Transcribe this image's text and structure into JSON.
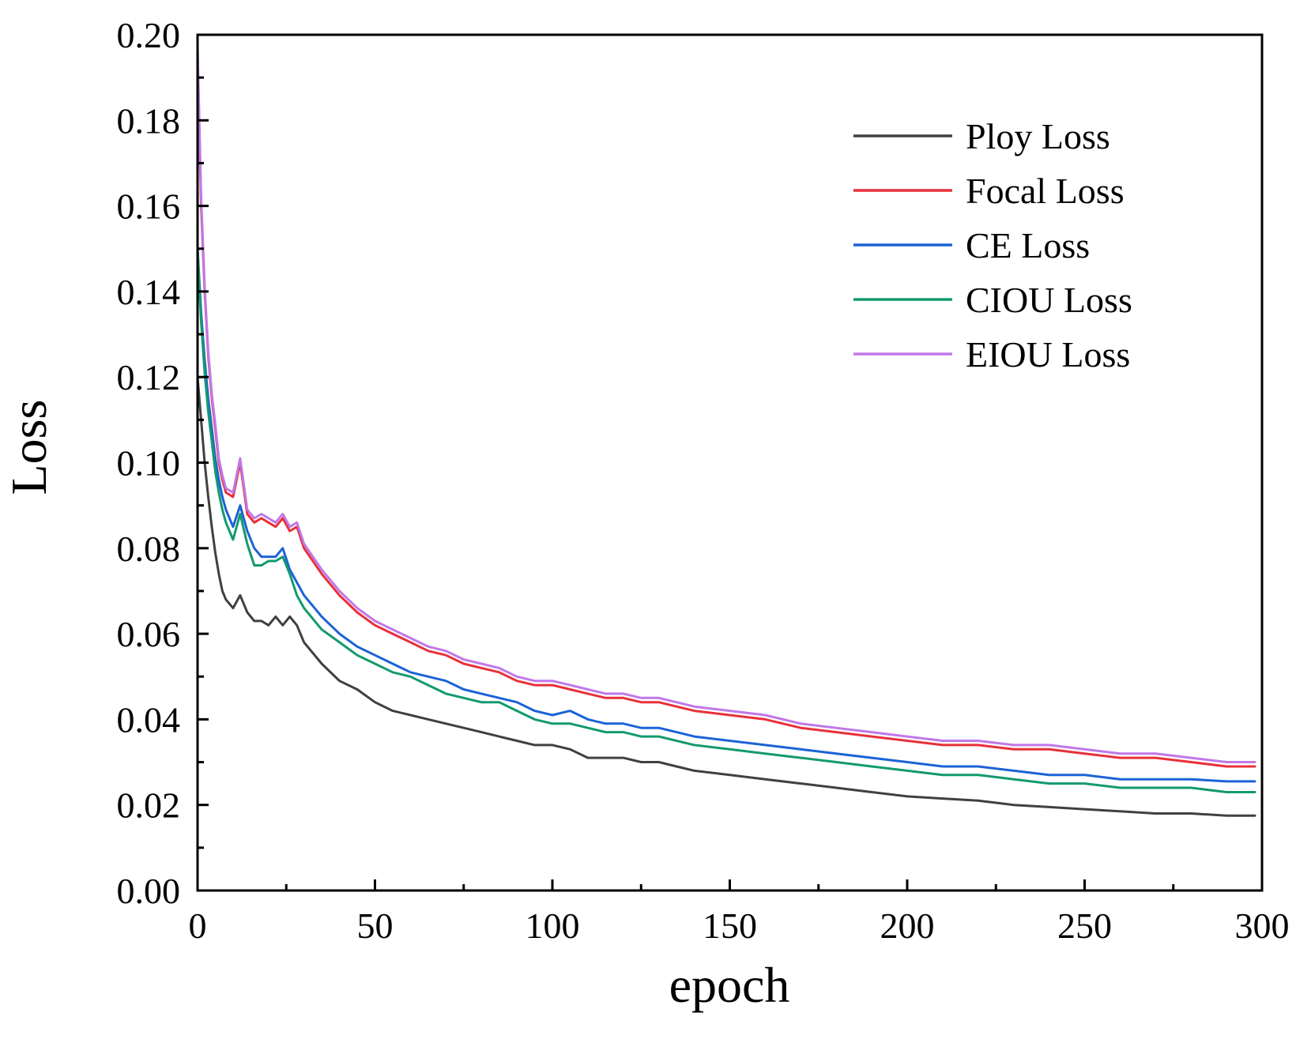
{
  "chart_data": {
    "type": "line",
    "title": "",
    "xlabel": "epoch",
    "ylabel": "Loss",
    "xlim": [
      0,
      300
    ],
    "ylim": [
      0,
      0.2
    ],
    "x_ticks": [
      0,
      50,
      100,
      150,
      200,
      250,
      300
    ],
    "x_tick_labels": [
      "0",
      "50",
      "100",
      "150",
      "200",
      "250",
      "300"
    ],
    "y_ticks": [
      0,
      0.02,
      0.04,
      0.06,
      0.08,
      0.1,
      0.12,
      0.14,
      0.16,
      0.18,
      0.2
    ],
    "y_tick_labels": [
      "0.00",
      "0.02",
      "0.04",
      "0.06",
      "0.08",
      "0.10",
      "0.12",
      "0.14",
      "0.16",
      "0.18",
      "0.20"
    ],
    "grid": false,
    "legend_position": "top-right",
    "series": [
      {
        "name": "Ploy Loss",
        "color": "#404040",
        "x": [
          0,
          1,
          2,
          3,
          4,
          5,
          6,
          7,
          8,
          10,
          12,
          14,
          16,
          18,
          20,
          22,
          24,
          26,
          28,
          30,
          35,
          40,
          45,
          50,
          55,
          60,
          65,
          70,
          75,
          80,
          85,
          90,
          95,
          100,
          105,
          110,
          115,
          120,
          125,
          130,
          135,
          140,
          150,
          160,
          170,
          180,
          190,
          200,
          210,
          220,
          230,
          240,
          250,
          260,
          270,
          280,
          290,
          298
        ],
        "y": [
          0.12,
          0.11,
          0.1,
          0.092,
          0.085,
          0.079,
          0.074,
          0.07,
          0.068,
          0.066,
          0.069,
          0.065,
          0.063,
          0.063,
          0.062,
          0.064,
          0.062,
          0.064,
          0.062,
          0.058,
          0.053,
          0.049,
          0.047,
          0.044,
          0.042,
          0.041,
          0.04,
          0.039,
          0.038,
          0.037,
          0.036,
          0.035,
          0.034,
          0.034,
          0.033,
          0.031,
          0.031,
          0.031,
          0.03,
          0.03,
          0.029,
          0.028,
          0.027,
          0.026,
          0.025,
          0.024,
          0.023,
          0.022,
          0.0215,
          0.021,
          0.02,
          0.0195,
          0.019,
          0.0185,
          0.018,
          0.018,
          0.0175,
          0.0175
        ]
      },
      {
        "name": "Focal Loss",
        "color": "#e8303a",
        "x": [
          0,
          1,
          2,
          3,
          4,
          5,
          6,
          7,
          8,
          10,
          12,
          14,
          16,
          18,
          20,
          22,
          24,
          26,
          28,
          30,
          35,
          40,
          45,
          50,
          55,
          60,
          65,
          70,
          75,
          80,
          85,
          90,
          95,
          100,
          105,
          110,
          115,
          120,
          125,
          130,
          135,
          140,
          150,
          160,
          170,
          180,
          190,
          200,
          210,
          220,
          230,
          240,
          250,
          260,
          270,
          280,
          290,
          298
        ],
        "y": [
          0.195,
          0.16,
          0.14,
          0.125,
          0.115,
          0.108,
          0.1,
          0.096,
          0.093,
          0.092,
          0.1,
          0.088,
          0.086,
          0.087,
          0.086,
          0.085,
          0.087,
          0.084,
          0.085,
          0.08,
          0.074,
          0.069,
          0.065,
          0.062,
          0.06,
          0.058,
          0.056,
          0.055,
          0.053,
          0.052,
          0.051,
          0.049,
          0.048,
          0.048,
          0.047,
          0.046,
          0.045,
          0.045,
          0.044,
          0.044,
          0.043,
          0.042,
          0.041,
          0.04,
          0.038,
          0.037,
          0.036,
          0.035,
          0.034,
          0.034,
          0.033,
          0.033,
          0.032,
          0.031,
          0.031,
          0.03,
          0.029,
          0.029
        ]
      },
      {
        "name": "CE Loss",
        "color": "#1c63d6",
        "x": [
          0,
          1,
          2,
          3,
          4,
          5,
          6,
          7,
          8,
          10,
          12,
          14,
          16,
          18,
          20,
          22,
          24,
          26,
          28,
          30,
          35,
          40,
          45,
          50,
          55,
          60,
          65,
          70,
          75,
          80,
          85,
          90,
          95,
          100,
          105,
          110,
          115,
          120,
          125,
          130,
          135,
          140,
          150,
          160,
          170,
          180,
          190,
          200,
          210,
          220,
          230,
          240,
          250,
          260,
          270,
          280,
          290,
          298
        ],
        "y": [
          0.15,
          0.135,
          0.124,
          0.115,
          0.108,
          0.101,
          0.096,
          0.092,
          0.089,
          0.085,
          0.09,
          0.084,
          0.08,
          0.078,
          0.078,
          0.078,
          0.08,
          0.075,
          0.072,
          0.069,
          0.064,
          0.06,
          0.057,
          0.055,
          0.053,
          0.051,
          0.05,
          0.049,
          0.047,
          0.046,
          0.045,
          0.044,
          0.042,
          0.041,
          0.042,
          0.04,
          0.039,
          0.039,
          0.038,
          0.038,
          0.037,
          0.036,
          0.035,
          0.034,
          0.033,
          0.032,
          0.031,
          0.03,
          0.029,
          0.029,
          0.028,
          0.027,
          0.027,
          0.026,
          0.026,
          0.026,
          0.0255,
          0.0255
        ]
      },
      {
        "name": "CIOU Loss",
        "color": "#139a6e",
        "x": [
          0,
          1,
          2,
          3,
          4,
          5,
          6,
          7,
          8,
          10,
          12,
          14,
          16,
          18,
          20,
          22,
          24,
          26,
          28,
          30,
          35,
          40,
          45,
          50,
          55,
          60,
          65,
          70,
          75,
          80,
          85,
          90,
          95,
          100,
          105,
          110,
          115,
          120,
          125,
          130,
          135,
          140,
          150,
          160,
          170,
          180,
          190,
          200,
          210,
          220,
          230,
          240,
          250,
          260,
          270,
          280,
          290,
          298
        ],
        "y": [
          0.15,
          0.133,
          0.121,
          0.112,
          0.105,
          0.098,
          0.093,
          0.089,
          0.086,
          0.082,
          0.088,
          0.081,
          0.076,
          0.076,
          0.077,
          0.077,
          0.078,
          0.074,
          0.069,
          0.066,
          0.061,
          0.058,
          0.055,
          0.053,
          0.051,
          0.05,
          0.048,
          0.046,
          0.045,
          0.044,
          0.044,
          0.042,
          0.04,
          0.039,
          0.039,
          0.038,
          0.037,
          0.037,
          0.036,
          0.036,
          0.035,
          0.034,
          0.033,
          0.032,
          0.031,
          0.03,
          0.029,
          0.028,
          0.027,
          0.027,
          0.026,
          0.025,
          0.025,
          0.024,
          0.024,
          0.024,
          0.023,
          0.023
        ]
      },
      {
        "name": "EIOU Loss",
        "color": "#c078e8",
        "x": [
          0,
          1,
          2,
          3,
          4,
          5,
          6,
          7,
          8,
          10,
          12,
          14,
          16,
          18,
          20,
          22,
          24,
          26,
          28,
          30,
          35,
          40,
          45,
          50,
          55,
          60,
          65,
          70,
          75,
          80,
          85,
          90,
          95,
          100,
          105,
          110,
          115,
          120,
          125,
          130,
          135,
          140,
          150,
          160,
          170,
          180,
          190,
          200,
          210,
          220,
          230,
          240,
          250,
          260,
          270,
          280,
          290,
          298
        ],
        "y": [
          0.197,
          0.162,
          0.141,
          0.126,
          0.116,
          0.109,
          0.101,
          0.097,
          0.094,
          0.093,
          0.101,
          0.089,
          0.087,
          0.088,
          0.087,
          0.086,
          0.088,
          0.085,
          0.086,
          0.081,
          0.075,
          0.07,
          0.066,
          0.063,
          0.061,
          0.059,
          0.057,
          0.056,
          0.054,
          0.053,
          0.052,
          0.05,
          0.049,
          0.049,
          0.048,
          0.047,
          0.046,
          0.046,
          0.045,
          0.045,
          0.044,
          0.043,
          0.042,
          0.041,
          0.039,
          0.038,
          0.037,
          0.036,
          0.035,
          0.035,
          0.034,
          0.034,
          0.033,
          0.032,
          0.032,
          0.031,
          0.03,
          0.03
        ]
      }
    ]
  }
}
